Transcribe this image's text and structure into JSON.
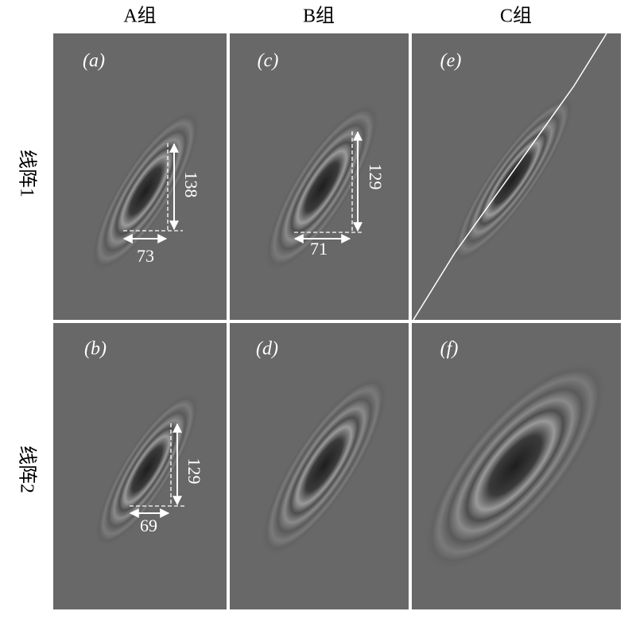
{
  "columns": [
    "A组",
    "B组",
    "C组"
  ],
  "rows": [
    "线阵1",
    "线阵2"
  ],
  "panels": [
    {
      "label": "(a)",
      "width": "73",
      "height": "138"
    },
    {
      "label": "(c)",
      "width": "71",
      "height": "129"
    },
    {
      "label": "(e)"
    },
    {
      "label": "(b)",
      "width": "69",
      "height": "129"
    },
    {
      "label": "(d)"
    },
    {
      "label": "(f)"
    }
  ]
}
